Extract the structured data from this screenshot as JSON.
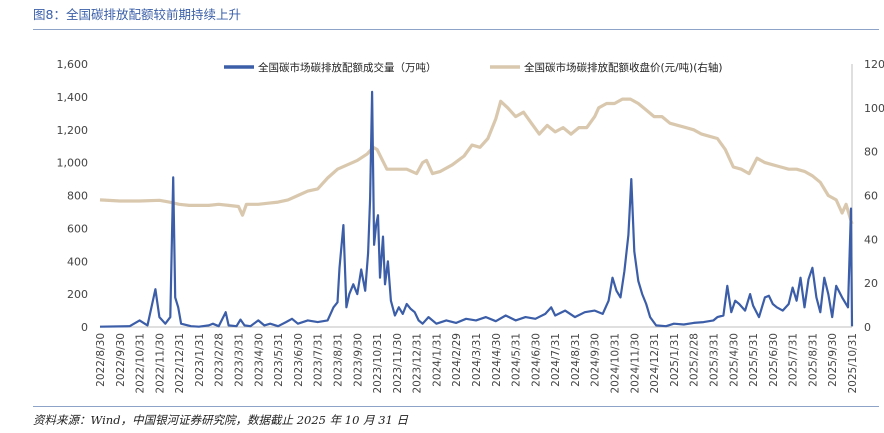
{
  "header": {
    "title": "图8：全国碳排放配额较前期持续上升"
  },
  "footer": {
    "source": "资料来源：Wind，中国银河证券研究院，数据截止 2025 年 10 月 31 日"
  },
  "colors": {
    "volume": "#3c5ea8",
    "price": "#d9c8ae",
    "title": "#3a5fa8"
  },
  "chart_data": {
    "type": "line",
    "legend_position": "top",
    "grid": false,
    "x_categories": [
      "2022/8/30",
      "2022/9/30",
      "2022/10/31",
      "2022/11/30",
      "2022/12/31",
      "2023/1/31",
      "2023/2/28",
      "2023/3/31",
      "2023/4/30",
      "2023/5/31",
      "2023/6/30",
      "2023/7/31",
      "2023/8/31",
      "2023/9/30",
      "2023/10/31",
      "2023/11/30",
      "2023/12/31",
      "2024/1/31",
      "2024/2/29",
      "2024/3/31",
      "2024/4/30",
      "2024/5/31",
      "2024/6/30",
      "2024/7/31",
      "2024/8/31",
      "2024/9/30",
      "2024/10/31",
      "2024/11/30",
      "2024/12/31",
      "2025/1/31",
      "2025/2/28",
      "2025/3/31",
      "2025/4/30",
      "2025/5/31",
      "2025/6/30",
      "2025/7/31",
      "2025/8/31",
      "2025/9/30",
      "2025/10/31"
    ],
    "y_left": {
      "min": 0,
      "max": 1600,
      "ticks": [
        "0",
        "200",
        "400",
        "600",
        "800",
        "1,000",
        "1,200",
        "1,400",
        "1,600"
      ]
    },
    "y_right": {
      "min": 0,
      "max": 120,
      "ticks": [
        "0",
        "20",
        "40",
        "60",
        "80",
        "100",
        "120"
      ]
    },
    "series": [
      {
        "name": "全国碳市场碳排放配额成交量（万吨）",
        "axis": "left",
        "points": [
          [
            0,
            2
          ],
          [
            1.5,
            5
          ],
          [
            2,
            40
          ],
          [
            2.4,
            10
          ],
          [
            2.8,
            230
          ],
          [
            3,
            60
          ],
          [
            3.3,
            20
          ],
          [
            3.55,
            60
          ],
          [
            3.7,
            910
          ],
          [
            3.8,
            180
          ],
          [
            3.95,
            120
          ],
          [
            4.1,
            20
          ],
          [
            4.6,
            5
          ],
          [
            5,
            2
          ],
          [
            5.5,
            10
          ],
          [
            5.7,
            20
          ],
          [
            6,
            5
          ],
          [
            6.35,
            90
          ],
          [
            6.5,
            10
          ],
          [
            6.9,
            5
          ],
          [
            7.1,
            45
          ],
          [
            7.3,
            10
          ],
          [
            7.6,
            5
          ],
          [
            8,
            40
          ],
          [
            8.3,
            10
          ],
          [
            8.6,
            20
          ],
          [
            9,
            5
          ],
          [
            9.4,
            30
          ],
          [
            9.7,
            50
          ],
          [
            10,
            20
          ],
          [
            10.5,
            40
          ],
          [
            11,
            30
          ],
          [
            11.5,
            40
          ],
          [
            11.8,
            120
          ],
          [
            12,
            150
          ],
          [
            12.1,
            360
          ],
          [
            12.3,
            620
          ],
          [
            12.45,
            120
          ],
          [
            12.6,
            200
          ],
          [
            12.8,
            260
          ],
          [
            13,
            200
          ],
          [
            13.2,
            350
          ],
          [
            13.4,
            220
          ],
          [
            13.55,
            450
          ],
          [
            13.65,
            780
          ],
          [
            13.75,
            1430
          ],
          [
            13.85,
            500
          ],
          [
            13.95,
            620
          ],
          [
            14.05,
            680
          ],
          [
            14.15,
            300
          ],
          [
            14.3,
            550
          ],
          [
            14.4,
            260
          ],
          [
            14.55,
            400
          ],
          [
            14.7,
            160
          ],
          [
            14.9,
            70
          ],
          [
            15.1,
            120
          ],
          [
            15.3,
            80
          ],
          [
            15.5,
            140
          ],
          [
            15.7,
            110
          ],
          [
            15.9,
            90
          ],
          [
            16.1,
            40
          ],
          [
            16.3,
            20
          ],
          [
            16.6,
            60
          ],
          [
            17,
            20
          ],
          [
            17.5,
            40
          ],
          [
            18,
            25
          ],
          [
            18.5,
            50
          ],
          [
            19,
            40
          ],
          [
            19.5,
            60
          ],
          [
            20,
            35
          ],
          [
            20.5,
            70
          ],
          [
            21,
            40
          ],
          [
            21.5,
            60
          ],
          [
            22,
            50
          ],
          [
            22.5,
            80
          ],
          [
            22.8,
            120
          ],
          [
            23,
            70
          ],
          [
            23.5,
            100
          ],
          [
            24,
            60
          ],
          [
            24.5,
            90
          ],
          [
            25,
            100
          ],
          [
            25.4,
            80
          ],
          [
            25.7,
            160
          ],
          [
            25.9,
            300
          ],
          [
            26.1,
            220
          ],
          [
            26.3,
            180
          ],
          [
            26.5,
            340
          ],
          [
            26.7,
            560
          ],
          [
            26.85,
            900
          ],
          [
            27,
            460
          ],
          [
            27.2,
            280
          ],
          [
            27.4,
            200
          ],
          [
            27.6,
            140
          ],
          [
            27.8,
            60
          ],
          [
            28.1,
            10
          ],
          [
            28.6,
            5
          ],
          [
            29,
            20
          ],
          [
            29.5,
            15
          ],
          [
            30,
            25
          ],
          [
            30.5,
            30
          ],
          [
            31,
            40
          ],
          [
            31.2,
            60
          ],
          [
            31.5,
            70
          ],
          [
            31.7,
            250
          ],
          [
            31.9,
            90
          ],
          [
            32.1,
            160
          ],
          [
            32.3,
            140
          ],
          [
            32.6,
            100
          ],
          [
            32.85,
            200
          ],
          [
            33,
            130
          ],
          [
            33.3,
            60
          ],
          [
            33.6,
            180
          ],
          [
            33.8,
            190
          ],
          [
            34,
            140
          ],
          [
            34.2,
            120
          ],
          [
            34.5,
            100
          ],
          [
            34.8,
            140
          ],
          [
            35,
            240
          ],
          [
            35.2,
            160
          ],
          [
            35.4,
            300
          ],
          [
            35.6,
            120
          ],
          [
            35.8,
            290
          ],
          [
            36,
            360
          ],
          [
            36.2,
            180
          ],
          [
            36.4,
            90
          ],
          [
            36.6,
            300
          ],
          [
            36.8,
            200
          ],
          [
            37,
            60
          ],
          [
            37.2,
            250
          ],
          [
            37.5,
            180
          ],
          [
            37.8,
            120
          ],
          [
            37.95,
            720
          ],
          [
            38,
            5
          ]
        ]
      },
      {
        "name": "全国碳市场碳排放配额收盘价(元/吨)(右轴)",
        "axis": "right",
        "points": [
          [
            0,
            58
          ],
          [
            1,
            57.5
          ],
          [
            2,
            57.5
          ],
          [
            3,
            57.8
          ],
          [
            3.5,
            57
          ],
          [
            4,
            56
          ],
          [
            4.5,
            55.5
          ],
          [
            5,
            55.5
          ],
          [
            5.5,
            55.5
          ],
          [
            6,
            56
          ],
          [
            6.5,
            55.5
          ],
          [
            7,
            55
          ],
          [
            7.2,
            51
          ],
          [
            7.4,
            56
          ],
          [
            8,
            56
          ],
          [
            8.5,
            56.5
          ],
          [
            9,
            57
          ],
          [
            9.5,
            58
          ],
          [
            10,
            60
          ],
          [
            10.5,
            62
          ],
          [
            11,
            63
          ],
          [
            11.5,
            68
          ],
          [
            12,
            72
          ],
          [
            12.5,
            74
          ],
          [
            13,
            76
          ],
          [
            13.5,
            79
          ],
          [
            13.8,
            82
          ],
          [
            14,
            81
          ],
          [
            14.5,
            72
          ],
          [
            15,
            72
          ],
          [
            15.5,
            72
          ],
          [
            16,
            70
          ],
          [
            16.3,
            75
          ],
          [
            16.5,
            76
          ],
          [
            16.8,
            70
          ],
          [
            17.2,
            71
          ],
          [
            17.8,
            74
          ],
          [
            18.4,
            78
          ],
          [
            18.8,
            83
          ],
          [
            19.2,
            82
          ],
          [
            19.6,
            86
          ],
          [
            20,
            95
          ],
          [
            20.25,
            103
          ],
          [
            20.6,
            100
          ],
          [
            21,
            96
          ],
          [
            21.4,
            98
          ],
          [
            21.8,
            93
          ],
          [
            22.2,
            88
          ],
          [
            22.6,
            92
          ],
          [
            23,
            89
          ],
          [
            23.4,
            91
          ],
          [
            23.8,
            88
          ],
          [
            24.2,
            91
          ],
          [
            24.6,
            91
          ],
          [
            25,
            96
          ],
          [
            25.2,
            100
          ],
          [
            25.6,
            102
          ],
          [
            26,
            102
          ],
          [
            26.4,
            104
          ],
          [
            26.8,
            104
          ],
          [
            27.2,
            102
          ],
          [
            27.6,
            99
          ],
          [
            28,
            96
          ],
          [
            28.4,
            96
          ],
          [
            28.8,
            93
          ],
          [
            29.2,
            92
          ],
          [
            29.6,
            91
          ],
          [
            30,
            90
          ],
          [
            30.4,
            88
          ],
          [
            30.8,
            87
          ],
          [
            31.2,
            86
          ],
          [
            31.6,
            81
          ],
          [
            32,
            73
          ],
          [
            32.4,
            72
          ],
          [
            32.8,
            70
          ],
          [
            33.2,
            77
          ],
          [
            33.6,
            75
          ],
          [
            34,
            74
          ],
          [
            34.4,
            73
          ],
          [
            34.8,
            72
          ],
          [
            35.2,
            72
          ],
          [
            35.6,
            71
          ],
          [
            36,
            69
          ],
          [
            36.4,
            66
          ],
          [
            36.8,
            60
          ],
          [
            37.2,
            58
          ],
          [
            37.5,
            52
          ],
          [
            37.7,
            56
          ],
          [
            38,
            47
          ]
        ]
      }
    ]
  }
}
